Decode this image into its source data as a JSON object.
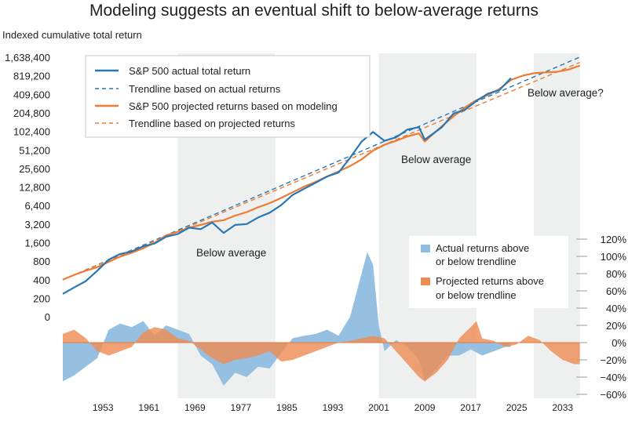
{
  "chart_data": {
    "type": "line",
    "title": "Modeling suggests an eventual shift to below-average returns",
    "ylabel_left": "Indexed cumulative total return",
    "y_scale_left": "log2",
    "yticks_left": [
      "1,638,400",
      "819,200",
      "409,600",
      "204,800",
      "102,400",
      "51,200",
      "25,600",
      "12,800",
      "6,400",
      "3,200",
      "1,600",
      "800",
      "400",
      "200",
      "0"
    ],
    "yticks_right": [
      "120%",
      "100%",
      "80%",
      "60%",
      "40%",
      "20%",
      "0%",
      "−20%",
      "−40%",
      "−60%"
    ],
    "xticks": [
      "1953",
      "1961",
      "1969",
      "1977",
      "1985",
      "1993",
      "2001",
      "2009",
      "2017",
      "2025",
      "2033"
    ],
    "x_range": [
      1946,
      2037
    ],
    "ylim_right": [
      -60,
      120
    ],
    "shaded_periods": [
      {
        "start": 1966,
        "end": 1983,
        "label": "Below average"
      },
      {
        "start": 2001,
        "end": 2018,
        "label": "Below average"
      },
      {
        "start": 2028,
        "end": 2036,
        "label": "Below average?"
      }
    ],
    "series": [
      {
        "name": "S&P 500 actual total return",
        "style": "solid",
        "color": "#2878b5",
        "x": [
          1946,
          1948,
          1950,
          1952,
          1954,
          1956,
          1958,
          1960,
          1962,
          1964,
          1966,
          1968,
          1970,
          1972,
          1974,
          1976,
          1978,
          1980,
          1982,
          1984,
          1986,
          1988,
          1990,
          1992,
          1994,
          1996,
          1998,
          2000,
          2002,
          2004,
          2006,
          2008,
          2009,
          2012,
          2014,
          2016,
          2018,
          2020,
          2022,
          2024
        ],
        "values": [
          235,
          300,
          380,
          560,
          850,
          1050,
          1150,
          1400,
          1550,
          2000,
          2200,
          2800,
          2650,
          3400,
          2300,
          3100,
          3200,
          4100,
          4900,
          6500,
          9500,
          12000,
          15000,
          19000,
          22000,
          38000,
          70000,
          100000,
          72000,
          82000,
          110000,
          120000,
          75000,
          120000,
          200000,
          230000,
          320000,
          420000,
          480000,
          750000
        ]
      },
      {
        "name": "Trendline based on actual returns",
        "style": "dashed",
        "color": "#2878b5",
        "x": [
          1946,
          2036
        ],
        "values": [
          400,
          1650000
        ]
      },
      {
        "name": "S&P 500 projected returns based on modeling",
        "style": "solid",
        "color": "#ee7a33",
        "x": [
          1946,
          1948,
          1950,
          1952,
          1954,
          1956,
          1958,
          1960,
          1962,
          1964,
          1966,
          1968,
          1970,
          1972,
          1974,
          1976,
          1978,
          1980,
          1982,
          1984,
          1986,
          1988,
          1990,
          1992,
          1994,
          1996,
          1998,
          2000,
          2002,
          2004,
          2006,
          2008,
          2009,
          2012,
          2014,
          2016,
          2018,
          2020,
          2022,
          2024,
          2026,
          2028,
          2030,
          2032,
          2034,
          2036
        ],
        "values": [
          400,
          480,
          560,
          640,
          780,
          950,
          1100,
          1300,
          1600,
          2100,
          2400,
          2800,
          3100,
          3500,
          3700,
          4400,
          5000,
          6000,
          7000,
          8500,
          10500,
          13000,
          15500,
          19000,
          23000,
          28000,
          36000,
          50000,
          62000,
          72000,
          85000,
          95000,
          70000,
          125000,
          180000,
          250000,
          330000,
          400000,
          500000,
          700000,
          820000,
          900000,
          930000,
          950000,
          1030000,
          1200000
        ]
      },
      {
        "name": "Trendline based on projected returns",
        "style": "dashed",
        "color": "#ee7a33",
        "x": [
          1946,
          2036
        ],
        "values": [
          400,
          1350000
        ]
      },
      {
        "name": "Actual returns above or below trendline",
        "axis": "right",
        "type": "area",
        "color": "#8fbde0",
        "x": [
          1946,
          1948,
          1950,
          1952,
          1954,
          1956,
          1958,
          1960,
          1962,
          1964,
          1966,
          1968,
          1970,
          1972,
          1974,
          1976,
          1978,
          1980,
          1982,
          1984,
          1986,
          1988,
          1990,
          1992,
          1994,
          1996,
          1998,
          1999,
          2000,
          2001,
          2002,
          2004,
          2006,
          2008,
          2009,
          2011,
          2013,
          2015,
          2017,
          2019,
          2021,
          2023,
          2024
        ],
        "values": [
          -45,
          -38,
          -28,
          -18,
          15,
          22,
          18,
          25,
          8,
          20,
          15,
          10,
          -15,
          -25,
          -50,
          -35,
          -40,
          -28,
          -30,
          -12,
          5,
          8,
          10,
          15,
          8,
          30,
          80,
          105,
          90,
          20,
          -10,
          3,
          -5,
          -20,
          -45,
          -30,
          -15,
          -15,
          -8,
          -15,
          -10,
          -5,
          -5
        ]
      },
      {
        "name": "Projected returns above or below trendline",
        "axis": "right",
        "type": "area",
        "color": "#ee8c55",
        "x": [
          1946,
          1948,
          1950,
          1952,
          1954,
          1956,
          1958,
          1960,
          1962,
          1964,
          1966,
          1968,
          1970,
          1972,
          1974,
          1976,
          1978,
          1980,
          1982,
          1984,
          1986,
          1988,
          1990,
          1992,
          1994,
          1996,
          1998,
          2000,
          2002,
          2004,
          2006,
          2008,
          2009,
          2011,
          2013,
          2015,
          2017,
          2018,
          2019,
          2021,
          2023,
          2025,
          2027,
          2029,
          2031,
          2033,
          2035,
          2036
        ],
        "values": [
          10,
          15,
          5,
          -10,
          -15,
          -10,
          -5,
          12,
          18,
          15,
          5,
          2,
          -8,
          -18,
          -25,
          -20,
          -18,
          -15,
          -10,
          -22,
          -20,
          -15,
          -10,
          -5,
          0,
          2,
          5,
          8,
          5,
          -10,
          -25,
          -40,
          -45,
          -35,
          -20,
          5,
          18,
          25,
          5,
          2,
          -5,
          -2,
          8,
          3,
          -10,
          -20,
          -25,
          -25
        ]
      }
    ]
  },
  "annotations": {
    "shade_labels": [
      "Below average",
      "Below average",
      "Below average?"
    ]
  },
  "legend_top": {
    "items": [
      {
        "label": "S&P 500 actual total return",
        "color": "#2878b5",
        "style": "solid"
      },
      {
        "label": "Trendline based on actual returns",
        "color": "#2878b5",
        "style": "dashed"
      },
      {
        "label": "S&P 500 projected returns based on modeling",
        "color": "#ee7a33",
        "style": "solid"
      },
      {
        "label": "Trendline based on projected returns",
        "color": "#ee7a33",
        "style": "dashed"
      }
    ]
  },
  "legend_bottom": {
    "items": [
      {
        "line1": "Actual returns above",
        "line2": "or below trendline",
        "color": "#8fbde0"
      },
      {
        "line1": "Projected returns above",
        "line2": "or below trendline",
        "color": "#ee8c55"
      }
    ]
  }
}
